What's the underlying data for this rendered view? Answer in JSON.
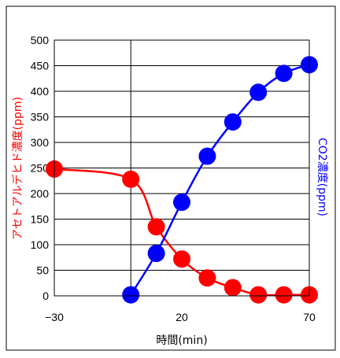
{
  "chart_data": {
    "type": "line",
    "title": "",
    "xlabel": "時間(min)",
    "ylabel_left": "アセトアルデヒド濃度(ppm)",
    "ylabel_right": "CO2濃度(ppm)",
    "xlim": [
      -30,
      70
    ],
    "ylim": [
      0,
      500
    ],
    "x_ticks": [
      -30,
      20,
      70
    ],
    "x_tick_labels": [
      "−30",
      "20",
      "70"
    ],
    "y_ticks": [
      0,
      50,
      100,
      150,
      200,
      250,
      300,
      350,
      400,
      450,
      500
    ],
    "y_tick_labels": [
      "0",
      "50",
      "100",
      "150",
      "200",
      "250",
      "300",
      "350",
      "400",
      "450",
      "500"
    ],
    "grid": true,
    "legend": "none",
    "series": [
      {
        "color": "#ff0000",
        "axis_label_ref": "ylabel_left",
        "x": [
          -30,
          0,
          10,
          20,
          30,
          40,
          50,
          60,
          70
        ],
        "y": [
          248,
          228,
          135,
          72,
          35,
          16,
          2,
          2,
          2
        ]
      },
      {
        "color": "#0000ff",
        "axis_label_ref": "ylabel_right",
        "x": [
          0,
          10,
          20,
          30,
          40,
          50,
          60,
          70
        ],
        "y": [
          2,
          83,
          183,
          273,
          340,
          398,
          435,
          452
        ]
      }
    ]
  }
}
